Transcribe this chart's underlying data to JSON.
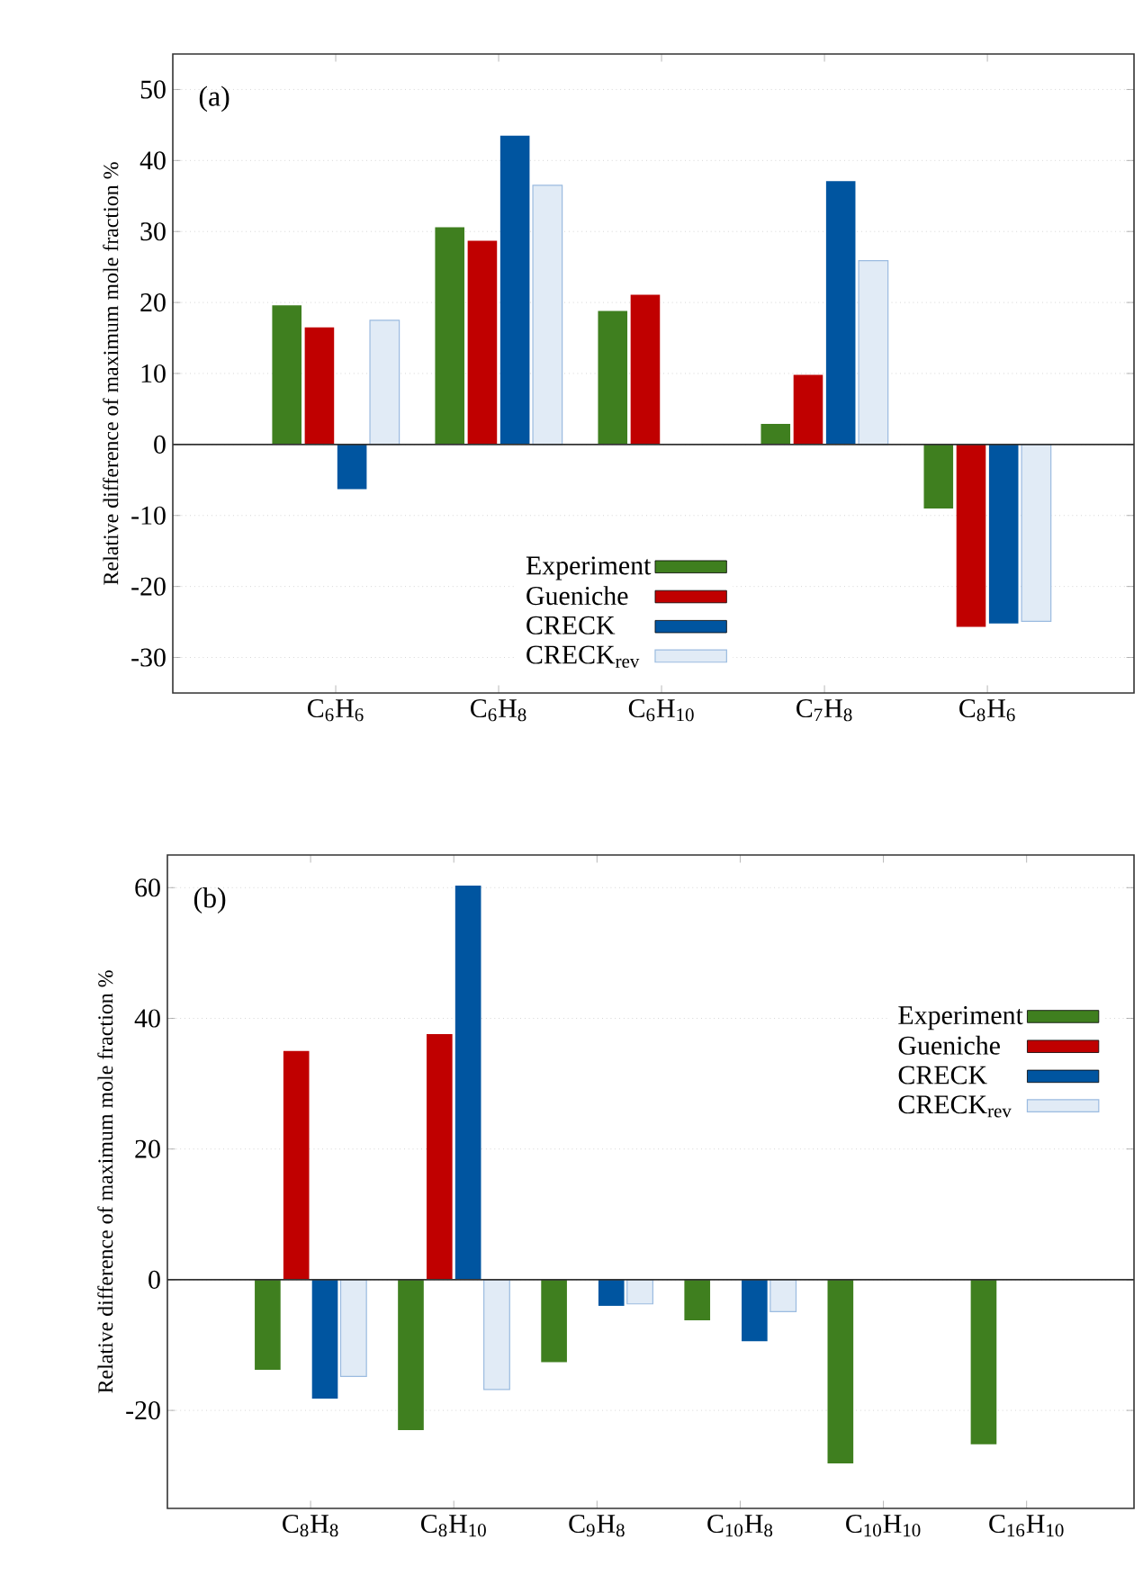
{
  "chart_data": [
    {
      "type": "bar",
      "ylabel": "Relative difference of maximum mole fraction %",
      "annotations": [
        "(a)"
      ],
      "categories": [
        "C$_{6}$H$_{6}$",
        "C$_{6}$H$_{8}$",
        "C$_{6}$H$_{10}$",
        "C$_{7}$H$_{8}$",
        "C$_{8}$H$_{6}$"
      ],
      "series": [
        {
          "name": "Experiment",
          "color": "#3f7f1f",
          "values": [
            19.6,
            30.6,
            18.8,
            2.9,
            -9.0
          ]
        },
        {
          "name": "Gueniche",
          "color": "#c00000",
          "values": [
            16.5,
            28.7,
            21.1,
            9.8,
            -25.7
          ]
        },
        {
          "name": "CRECK",
          "color": "#0055a0",
          "values": [
            -6.3,
            43.5,
            null,
            37.1,
            -25.2
          ]
        },
        {
          "name": "CRECK$_{rev}$",
          "color": "#9bbbe0",
          "values": [
            17.5,
            36.5,
            null,
            25.9,
            -24.9
          ]
        }
      ],
      "ylim": [
        -35,
        55
      ],
      "yticks": [
        -30,
        -20,
        -10,
        0,
        10,
        20,
        30,
        40,
        50
      ],
      "grid": "y",
      "legend": "bottom",
      "ref_lines": [
        {
          "axis": "y",
          "value": 0,
          "color": "#333333"
        }
      ]
    },
    {
      "type": "bar",
      "ylabel": "Relative difference of maximum mole fraction %",
      "annotations": [
        "(b)"
      ],
      "categories": [
        "C$_{8}$H$_{8}$",
        "C$_{8}$H$_{10}$",
        "C$_{9}$H$_{8}$",
        "C$_{10}$H$_{8}$",
        "C$_{10}$H$_{10}$",
        "C$_{16}$H$_{10}$"
      ],
      "series": [
        {
          "name": "Experiment",
          "color": "#3f7f1f",
          "values": [
            -13.8,
            -23.0,
            -12.6,
            -6.2,
            -28.1,
            -25.2
          ]
        },
        {
          "name": "Gueniche",
          "color": "#c00000",
          "values": [
            35.0,
            37.6,
            null,
            null,
            null,
            null
          ]
        },
        {
          "name": "CRECK",
          "color": "#0055a0",
          "values": [
            -18.2,
            60.3,
            -4.0,
            -9.4,
            null,
            null
          ]
        },
        {
          "name": "CRECK$_{rev}$",
          "color": "#9bbbe0",
          "values": [
            -14.8,
            -16.8,
            -3.7,
            -4.9,
            null,
            null
          ]
        }
      ],
      "ylim": [
        -35,
        65
      ],
      "yticks": [
        -20,
        0,
        20,
        40,
        60
      ],
      "grid": "y",
      "legend": "top right",
      "ref_lines": [
        {
          "axis": "y",
          "value": 0,
          "color": "#333333"
        }
      ]
    }
  ]
}
